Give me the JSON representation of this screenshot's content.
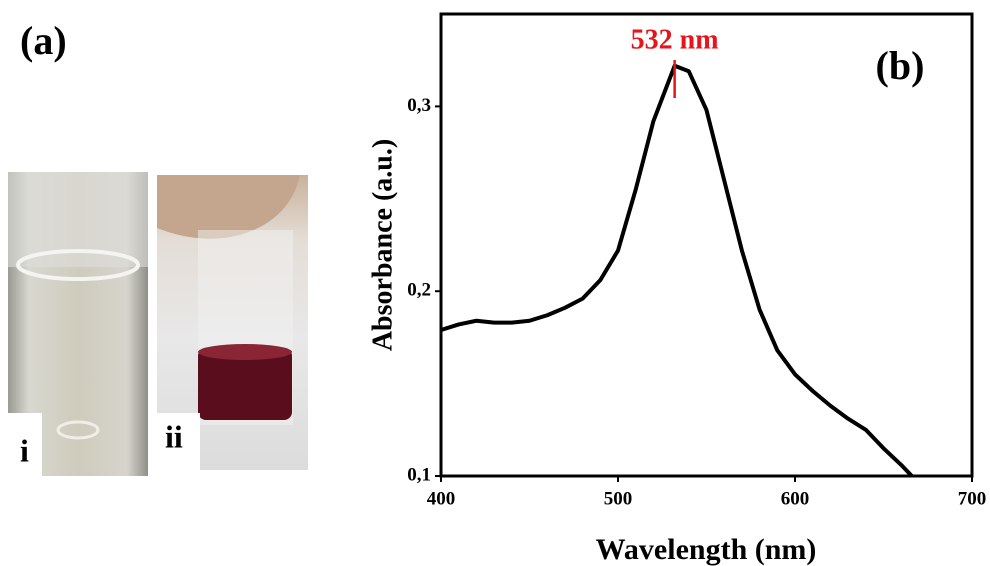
{
  "panels": {
    "a": "(a)",
    "i": "i",
    "ii": "ii"
  },
  "chart_data": {
    "type": "line",
    "panel_label": "(b)",
    "xlabel": "Wavelength (nm)",
    "ylabel": "Absorbance (a.u.)",
    "annotation": {
      "text": "532 nm",
      "x": 532,
      "color": "#e8141b"
    },
    "x": [
      400,
      410,
      420,
      430,
      440,
      450,
      460,
      470,
      480,
      490,
      500,
      510,
      520,
      532,
      540,
      550,
      560,
      570,
      580,
      590,
      600,
      610,
      620,
      630,
      640,
      650,
      660,
      666
    ],
    "series": [
      {
        "color": "#000000",
        "values": [
          0.179,
          0.182,
          0.184,
          0.183,
          0.183,
          0.184,
          0.187,
          0.191,
          0.196,
          0.206,
          0.222,
          0.255,
          0.292,
          0.322,
          0.319,
          0.298,
          0.26,
          0.222,
          0.19,
          0.168,
          0.155,
          0.146,
          0.138,
          0.131,
          0.125,
          0.115,
          0.106,
          0.1
        ]
      }
    ],
    "xlim": [
      400,
      700
    ],
    "xticks": [
      400,
      500,
      600,
      700
    ],
    "ylim": [
      0.1,
      0.35
    ],
    "yticks": [
      {
        "value": 0.1,
        "label": "0,1"
      },
      {
        "value": 0.2,
        "label": "0,2"
      },
      {
        "value": 0.3,
        "label": "0,3"
      }
    ]
  }
}
